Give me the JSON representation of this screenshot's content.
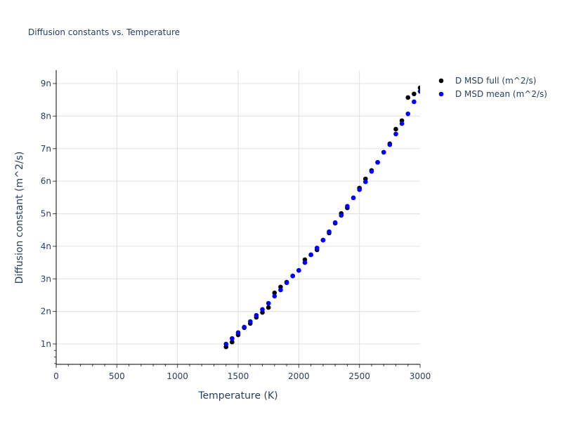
{
  "chart_data": {
    "type": "scatter",
    "title": "Diffusion constants vs. Temperature",
    "xlabel": "Temperature (K)",
    "ylabel": "Diffusion constant (m^2/s)",
    "xlim": [
      0,
      3000
    ],
    "ylim": [
      0.375,
      9.41
    ],
    "y_unit_suffix": "n",
    "xticks": [
      0,
      500,
      1000,
      1500,
      2000,
      2500,
      3000
    ],
    "xtick_labels": [
      "0",
      "500",
      "1000",
      "1500",
      "2000",
      "2500",
      "3000"
    ],
    "yticks": [
      1,
      2,
      3,
      4,
      5,
      6,
      7,
      8,
      9
    ],
    "ytick_labels": [
      "1n",
      "2n",
      "3n",
      "4n",
      "5n",
      "6n",
      "7n",
      "8n",
      "9n"
    ],
    "grid": true,
    "legend_position": "right",
    "x": [
      1400,
      1450,
      1500,
      1550,
      1600,
      1650,
      1700,
      1750,
      1800,
      1850,
      1900,
      1950,
      2000,
      2050,
      2100,
      2150,
      2200,
      2250,
      2300,
      2350,
      2400,
      2450,
      2500,
      2550,
      2600,
      2650,
      2700,
      2750,
      2800,
      2850,
      2900,
      2950,
      3000
    ],
    "series": [
      {
        "name": "D MSD full (m^2/s)",
        "color": "#000000",
        "values": [
          0.91,
          1.06,
          1.28,
          1.5,
          1.63,
          1.82,
          1.97,
          2.12,
          2.57,
          2.75,
          2.9,
          3.09,
          3.26,
          3.59,
          3.74,
          3.89,
          4.19,
          4.41,
          4.71,
          5.01,
          5.18,
          5.49,
          5.79,
          6.07,
          6.33,
          6.58,
          6.89,
          7.15,
          7.6,
          7.86,
          8.57,
          8.68,
          8.87
        ]
      },
      {
        "name": "D MSD mean (m^2/s)",
        "color": "#0000ff",
        "values": [
          1.0,
          1.17,
          1.35,
          1.52,
          1.69,
          1.88,
          2.06,
          2.25,
          2.47,
          2.66,
          2.88,
          3.09,
          3.26,
          3.5,
          3.74,
          3.95,
          4.19,
          4.45,
          4.73,
          4.95,
          5.23,
          5.49,
          5.74,
          5.98,
          6.3,
          6.58,
          6.89,
          7.12,
          7.45,
          7.77,
          8.07,
          8.44,
          8.76
        ]
      }
    ]
  }
}
